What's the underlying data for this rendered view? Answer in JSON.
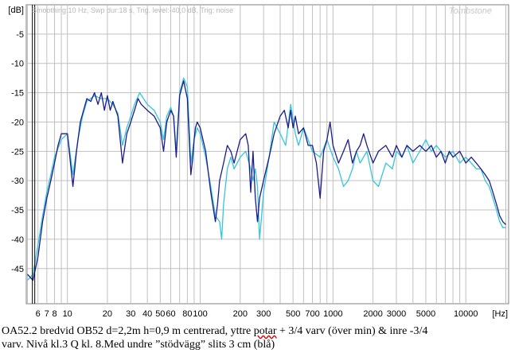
{
  "header": {
    "settings": "Smoothing:10 Hz, Swp dur:18 s, Trig. level:-40,0 dB, Trig: noise",
    "brand": "Tombstone"
  },
  "caption": {
    "line1_a": "OA52.2 bredvid OB52   d=2,2m h=0,9 m centrerad, yttre ",
    "line1_u": "potar",
    "line1_b": " + 3/4 varv (över min) & inre -3/4",
    "line2": "varv. Nivå kl.3  Q kl. 8.Med undre ”stödvägg” slits 3 cm  (blå)"
  },
  "colors": {
    "series_dark": "#1c1c8c",
    "series_light": "#33c7d9",
    "grid": "#c0c0c0",
    "marker": "#000000"
  },
  "chart_data": {
    "type": "line",
    "title": "",
    "xlabel": "[Hz]",
    "ylabel": "[dB]",
    "x_scale": "log",
    "xlim": [
      4.9,
      21000
    ],
    "ylim": [
      -51,
      0
    ],
    "grid": true,
    "y_ticks": [
      "[dB]",
      "-5",
      "-10",
      "-15",
      "-20",
      "-25",
      "-30",
      "-35",
      "-40",
      "-45"
    ],
    "y_tick_values": [
      0,
      -5,
      -10,
      -15,
      -20,
      -25,
      -30,
      -35,
      -40,
      -45
    ],
    "x_tick_labels": [
      "6",
      "7",
      "8",
      "10",
      "20",
      "30",
      "40",
      "50",
      "60",
      "80",
      "100",
      "200",
      "300",
      "500",
      "700",
      "1000",
      "2000",
      "3000",
      "5000",
      "10000",
      "[Hz]"
    ],
    "x_tick_values": [
      6,
      7,
      8,
      10,
      20,
      30,
      40,
      50,
      60,
      80,
      100,
      200,
      300,
      500,
      700,
      1000,
      2000,
      3000,
      5000,
      10000,
      20000
    ],
    "marker_x": 5.6,
    "series": [
      {
        "color": "#1c1c8c",
        "points": [
          [
            5,
            -46
          ],
          [
            5.5,
            -47
          ],
          [
            6,
            -43
          ],
          [
            6.5,
            -37
          ],
          [
            7,
            -33
          ],
          [
            7.5,
            -30
          ],
          [
            8,
            -27
          ],
          [
            8.5,
            -24
          ],
          [
            9,
            -22
          ],
          [
            10,
            -22
          ],
          [
            11,
            -31
          ],
          [
            11.7,
            -25
          ],
          [
            12.5,
            -20
          ],
          [
            14,
            -16
          ],
          [
            15,
            -16.5
          ],
          [
            16,
            -15
          ],
          [
            17,
            -17
          ],
          [
            18,
            -15
          ],
          [
            19,
            -18
          ],
          [
            20,
            -15.5
          ],
          [
            21,
            -18
          ],
          [
            22,
            -16.5
          ],
          [
            24,
            -19
          ],
          [
            26,
            -27
          ],
          [
            28,
            -22
          ],
          [
            30,
            -20
          ],
          [
            32,
            -18
          ],
          [
            34,
            -16
          ],
          [
            36,
            -17
          ],
          [
            40,
            -18
          ],
          [
            45,
            -19
          ],
          [
            50,
            -21
          ],
          [
            53,
            -25
          ],
          [
            56,
            -20
          ],
          [
            60,
            -18
          ],
          [
            63,
            -19
          ],
          [
            66,
            -26
          ],
          [
            70,
            -15.5
          ],
          [
            75,
            -13
          ],
          [
            80,
            -16
          ],
          [
            85,
            -29
          ],
          [
            88,
            -26
          ],
          [
            90,
            -23
          ],
          [
            92,
            -21
          ],
          [
            95,
            -20
          ],
          [
            100,
            -21
          ],
          [
            110,
            -25
          ],
          [
            120,
            -32
          ],
          [
            130,
            -37
          ],
          [
            135,
            -34
          ],
          [
            140,
            -30
          ],
          [
            150,
            -27
          ],
          [
            160,
            -24
          ],
          [
            170,
            -25
          ],
          [
            180,
            -27
          ],
          [
            200,
            -23
          ],
          [
            220,
            -22
          ],
          [
            230,
            -24
          ],
          [
            240,
            -32
          ],
          [
            250,
            -25
          ],
          [
            260,
            -33
          ],
          [
            270,
            -37
          ],
          [
            280,
            -33
          ],
          [
            300,
            -30
          ],
          [
            330,
            -26
          ],
          [
            360,
            -22
          ],
          [
            400,
            -19
          ],
          [
            430,
            -18
          ],
          [
            460,
            -21
          ],
          [
            480,
            -18
          ],
          [
            500,
            -21
          ],
          [
            520,
            -19
          ],
          [
            550,
            -22
          ],
          [
            600,
            -21
          ],
          [
            650,
            -24
          ],
          [
            700,
            -24
          ],
          [
            750,
            -27
          ],
          [
            800,
            -33
          ],
          [
            850,
            -25
          ],
          [
            900,
            -23
          ],
          [
            950,
            -20
          ],
          [
            1000,
            -24
          ],
          [
            1100,
            -27
          ],
          [
            1200,
            -25
          ],
          [
            1300,
            -23
          ],
          [
            1400,
            -27
          ],
          [
            1500,
            -25
          ],
          [
            1600,
            -24
          ],
          [
            1700,
            -22
          ],
          [
            1800,
            -24
          ],
          [
            2000,
            -27
          ],
          [
            2200,
            -25
          ],
          [
            2500,
            -24
          ],
          [
            2800,
            -26
          ],
          [
            3000,
            -24
          ],
          [
            3300,
            -26
          ],
          [
            3600,
            -24
          ],
          [
            4000,
            -25
          ],
          [
            4500,
            -24
          ],
          [
            5000,
            -25
          ],
          [
            5500,
            -24
          ],
          [
            6000,
            -26
          ],
          [
            6500,
            -25
          ],
          [
            7000,
            -27
          ],
          [
            7500,
            -25
          ],
          [
            8000,
            -26
          ],
          [
            9000,
            -25
          ],
          [
            10000,
            -27
          ],
          [
            11000,
            -26
          ],
          [
            12000,
            -27
          ],
          [
            13000,
            -28
          ],
          [
            14000,
            -29
          ],
          [
            15000,
            -30
          ],
          [
            16000,
            -32
          ],
          [
            17000,
            -34
          ],
          [
            18000,
            -36
          ],
          [
            19000,
            -37
          ],
          [
            20000,
            -37.5
          ]
        ]
      },
      {
        "color": "#33c7d9",
        "points": [
          [
            5,
            -47
          ],
          [
            5.5,
            -46
          ],
          [
            6,
            -41
          ],
          [
            6.5,
            -36
          ],
          [
            7,
            -32
          ],
          [
            7.5,
            -29
          ],
          [
            8,
            -26
          ],
          [
            9,
            -23
          ],
          [
            10,
            -22
          ],
          [
            11,
            -29
          ],
          [
            12,
            -23
          ],
          [
            13,
            -19
          ],
          [
            14,
            -16.5
          ],
          [
            16,
            -15.5
          ],
          [
            18,
            -16
          ],
          [
            20,
            -16
          ],
          [
            22,
            -17
          ],
          [
            24,
            -18.5
          ],
          [
            26,
            -24
          ],
          [
            28,
            -21
          ],
          [
            30,
            -19
          ],
          [
            32,
            -17
          ],
          [
            35,
            -15
          ],
          [
            40,
            -17
          ],
          [
            45,
            -18
          ],
          [
            50,
            -20
          ],
          [
            53,
            -23
          ],
          [
            56,
            -19
          ],
          [
            60,
            -17.5
          ],
          [
            63,
            -19
          ],
          [
            66,
            -25
          ],
          [
            70,
            -15
          ],
          [
            75,
            -12.5
          ],
          [
            80,
            -14
          ],
          [
            85,
            -27
          ],
          [
            90,
            -23
          ],
          [
            95,
            -21
          ],
          [
            100,
            -22
          ],
          [
            110,
            -26
          ],
          [
            120,
            -31
          ],
          [
            130,
            -36
          ],
          [
            140,
            -37
          ],
          [
            145,
            -40
          ],
          [
            150,
            -34
          ],
          [
            160,
            -28
          ],
          [
            170,
            -26
          ],
          [
            180,
            -28
          ],
          [
            200,
            -26
          ],
          [
            220,
            -25
          ],
          [
            240,
            -28
          ],
          [
            250,
            -30
          ],
          [
            260,
            -28
          ],
          [
            270,
            -31
          ],
          [
            280,
            -40
          ],
          [
            290,
            -36
          ],
          [
            300,
            -32
          ],
          [
            330,
            -26
          ],
          [
            360,
            -20
          ],
          [
            400,
            -22
          ],
          [
            440,
            -24
          ],
          [
            480,
            -17
          ],
          [
            520,
            -22
          ],
          [
            550,
            -24
          ],
          [
            600,
            -21
          ],
          [
            650,
            -23
          ],
          [
            700,
            -25
          ],
          [
            800,
            -26
          ],
          [
            900,
            -23
          ],
          [
            1000,
            -26
          ],
          [
            1100,
            -28
          ],
          [
            1200,
            -31
          ],
          [
            1300,
            -30
          ],
          [
            1400,
            -28
          ],
          [
            1500,
            -25
          ],
          [
            1600,
            -27
          ],
          [
            1800,
            -25
          ],
          [
            2000,
            -30
          ],
          [
            2200,
            -31
          ],
          [
            2500,
            -27
          ],
          [
            2800,
            -28
          ],
          [
            3000,
            -25
          ],
          [
            3300,
            -26
          ],
          [
            3600,
            -24
          ],
          [
            4000,
            -27
          ],
          [
            4500,
            -25
          ],
          [
            5000,
            -23
          ],
          [
            5500,
            -25
          ],
          [
            6000,
            -24
          ],
          [
            6500,
            -25
          ],
          [
            7000,
            -26
          ],
          [
            8000,
            -25
          ],
          [
            9000,
            -27
          ],
          [
            10000,
            -26
          ],
          [
            11000,
            -27
          ],
          [
            12000,
            -28
          ],
          [
            13000,
            -28
          ],
          [
            14000,
            -30
          ],
          [
            15000,
            -31
          ],
          [
            16000,
            -33
          ],
          [
            17000,
            -35
          ],
          [
            18000,
            -37
          ],
          [
            19000,
            -38
          ],
          [
            20000,
            -38
          ]
        ]
      }
    ]
  }
}
